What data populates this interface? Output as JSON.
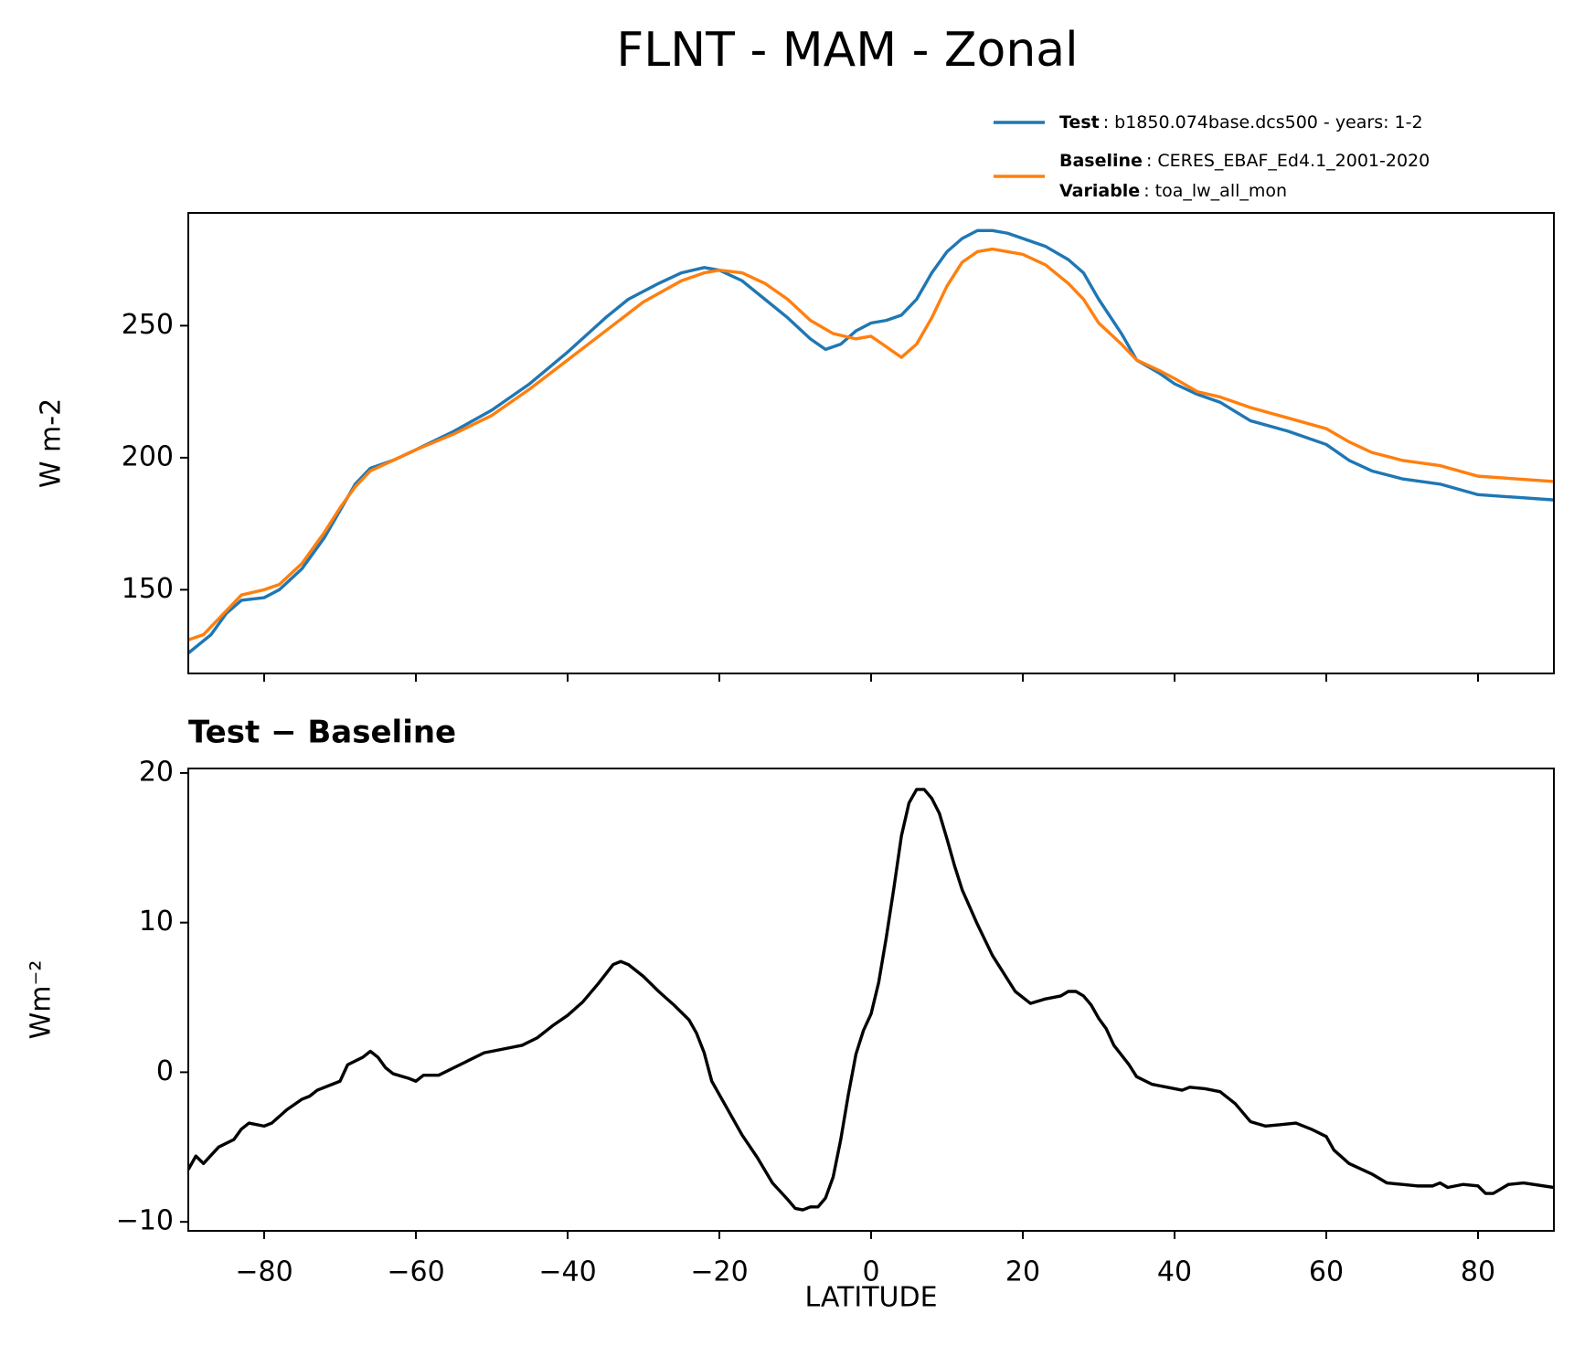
{
  "title": "FLNT - MAM - Zonal",
  "chart_data": [
    {
      "type": "line",
      "ylabel": "W m-2",
      "xlim": [
        -90,
        90
      ],
      "xticks": [
        -80,
        -60,
        -40,
        -20,
        0,
        20,
        40,
        60,
        80
      ],
      "show_xticklabels": false,
      "ylim": [
        118.3,
        292.7
      ],
      "yticks": [
        150,
        200,
        250
      ],
      "legend": "upper right",
      "legend_extra": {
        "name": "Variable",
        "info": ": toa_lw_all_mon"
      },
      "series": [
        {
          "name": "Test",
          "info": ": b1850.074base.dcs500 - years: 1-2",
          "color": "#1f77b4",
          "x": [
            -90,
            -87,
            -85,
            -83,
            -80,
            -78,
            -75,
            -72,
            -70,
            -68,
            -66,
            -63,
            -60,
            -55,
            -50,
            -45,
            -40,
            -35,
            -32,
            -28,
            -25,
            -22,
            -20,
            -17,
            -14,
            -11,
            -8,
            -6,
            -4,
            -2,
            0,
            2,
            4,
            6,
            8,
            10,
            12,
            14,
            16,
            18,
            20,
            23,
            26,
            28,
            30,
            33,
            35,
            38,
            40,
            43,
            46,
            50,
            55,
            60,
            63,
            66,
            70,
            75,
            80,
            85,
            90
          ],
          "values": [
            126,
            133,
            141,
            146,
            147,
            150,
            158,
            170,
            180,
            190,
            196,
            199,
            203,
            210,
            218,
            228,
            240,
            253,
            260,
            266,
            270,
            272,
            271,
            267,
            260,
            253,
            245,
            241,
            243,
            248,
            251,
            252,
            254,
            260,
            270,
            278,
            283,
            286,
            286,
            285,
            283,
            280,
            275,
            270,
            260,
            247,
            237,
            232,
            228,
            224,
            221,
            214,
            210,
            205,
            199,
            195,
            192,
            190,
            186,
            185,
            184
          ]
        },
        {
          "name": "Baseline",
          "info": ": CERES_EBAF_Ed4.1_2001-2020",
          "color": "#ff7f0e",
          "x": [
            -90,
            -88,
            -85,
            -83,
            -80,
            -78,
            -75,
            -72,
            -70,
            -68,
            -66,
            -63,
            -60,
            -55,
            -50,
            -45,
            -40,
            -35,
            -30,
            -25,
            -22,
            -20,
            -17,
            -14,
            -11,
            -8,
            -5,
            -2,
            0,
            2,
            4,
            6,
            8,
            10,
            12,
            14,
            16,
            18,
            20,
            23,
            26,
            28,
            30,
            33,
            35,
            38,
            40,
            43,
            46,
            50,
            55,
            60,
            63,
            66,
            70,
            75,
            80,
            85,
            90
          ],
          "values": [
            131,
            133,
            142,
            148,
            150,
            152,
            160,
            172,
            181,
            189,
            195,
            199,
            203,
            209,
            216,
            226,
            237,
            248,
            259,
            267,
            270,
            271,
            270,
            266,
            260,
            252,
            247,
            245,
            246,
            242,
            238,
            243,
            253,
            265,
            274,
            278,
            279,
            278,
            277,
            273,
            266,
            260,
            251,
            243,
            237,
            233,
            230,
            225,
            223,
            219,
            215,
            211,
            206,
            202,
            199,
            197,
            193,
            192,
            191
          ]
        }
      ]
    },
    {
      "type": "line",
      "title": "Test − Baseline",
      "xlabel": "LATITUDE",
      "ylabel": "Wm⁻²",
      "xlim": [
        -90,
        90
      ],
      "xticks": [
        {
          "value": -80,
          "label": "−80"
        },
        {
          "value": -60,
          "label": "−60"
        },
        {
          "value": -40,
          "label": "−40"
        },
        {
          "value": -20,
          "label": "−20"
        },
        0,
        20,
        40,
        60,
        80
      ],
      "show_xticklabels": true,
      "ylim": [
        -10.6,
        20.3
      ],
      "yticks": [
        {
          "value": -10,
          "label": "−10"
        },
        0,
        10,
        20
      ],
      "series": [
        {
          "color": "#000000",
          "x": [
            -90,
            -89,
            -88,
            -86,
            -84,
            -83,
            -82,
            -80,
            -79,
            -77,
            -75,
            -74,
            -73,
            -70,
            -69,
            -67,
            -66,
            -65,
            -64,
            -63,
            -61,
            -60,
            -59,
            -57,
            -55,
            -53,
            -51,
            -49,
            -46,
            -44,
            -42,
            -40,
            -38,
            -36,
            -34,
            -33,
            -32,
            -30,
            -28,
            -26,
            -24,
            -23,
            -22,
            -21,
            -19,
            -17,
            -15,
            -13,
            -11,
            -10,
            -9,
            -8,
            -7,
            -6,
            -5,
            -4,
            -3,
            -2,
            -1,
            0,
            1,
            2,
            3,
            4,
            5,
            6,
            7,
            8,
            9,
            10,
            11,
            12,
            14,
            16,
            18,
            19,
            21,
            23,
            25,
            26,
            27,
            28,
            29,
            30,
            31,
            32,
            34,
            35,
            37,
            39,
            40,
            41,
            42,
            44,
            46,
            48,
            50,
            52,
            56,
            58,
            60,
            61,
            63,
            66,
            68,
            70,
            72,
            74,
            75,
            76,
            78,
            80,
            81,
            82,
            84,
            86,
            90
          ],
          "values": [
            -6.5,
            -5.6,
            -6.1,
            -5,
            -4.5,
            -3.8,
            -3.4,
            -3.6,
            -3.4,
            -2.5,
            -1.8,
            -1.6,
            -1.2,
            -0.6,
            0.5,
            1.0,
            1.4,
            1.0,
            0.3,
            -0.1,
            -0.4,
            -0.6,
            -0.2,
            -0.2,
            0.3,
            0.8,
            1.3,
            1.5,
            1.8,
            2.3,
            3.1,
            3.8,
            4.7,
            5.9,
            7.2,
            7.4,
            7.2,
            6.4,
            5.4,
            4.5,
            3.5,
            2.6,
            1.3,
            -0.6,
            -2.4,
            -4.2,
            -5.7,
            -7.4,
            -8.5,
            -9.1,
            -9.2,
            -9.0,
            -9.0,
            -8.4,
            -7.0,
            -4.5,
            -1.5,
            1.2,
            2.8,
            3.9,
            6.0,
            9.0,
            12.3,
            15.8,
            18.0,
            18.9,
            18.9,
            18.3,
            17.3,
            15.6,
            13.8,
            12.2,
            9.9,
            7.8,
            6.2,
            5.4,
            4.6,
            4.9,
            5.1,
            5.4,
            5.4,
            5.1,
            4.5,
            3.6,
            2.9,
            1.8,
            0.5,
            -0.3,
            -0.8,
            -1.0,
            -1.1,
            -1.2,
            -1.0,
            -1.1,
            -1.3,
            -2.1,
            -3.3,
            -3.6,
            -3.4,
            -3.8,
            -4.3,
            -5.2,
            -6.1,
            -6.8,
            -7.4,
            -7.5,
            -7.6,
            -7.6,
            -7.4,
            -7.7,
            -7.5,
            -7.6,
            -8.1,
            -8.1,
            -7.5,
            -7.4,
            -7.7
          ]
        }
      ]
    }
  ]
}
